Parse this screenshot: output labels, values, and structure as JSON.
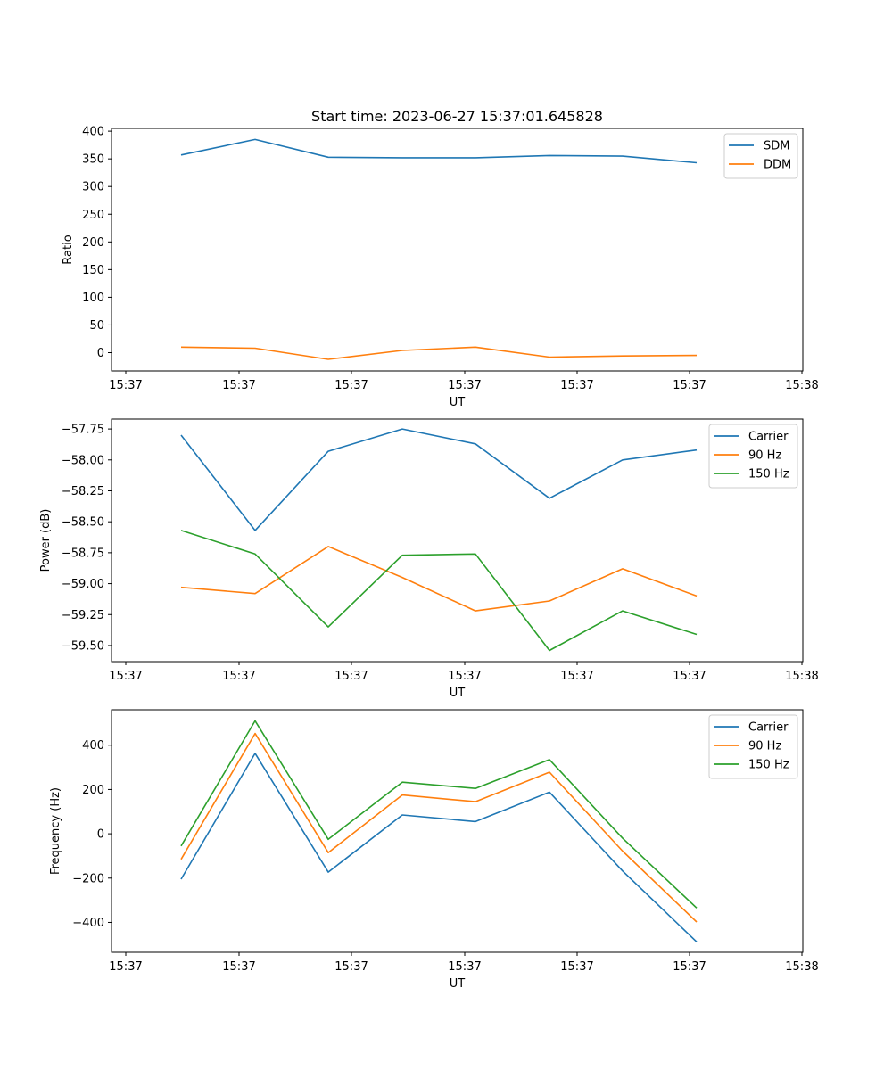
{
  "title": "Start time: 2023-06-27 15:37:01.645828",
  "colors": {
    "blue": "#1f77b4",
    "orange": "#ff7f0e",
    "green": "#2ca02c"
  },
  "chart_data": [
    {
      "type": "line",
      "xlabel": "UT",
      "ylabel": "Ratio",
      "xticks": [
        "15:37",
        "15:37",
        "15:37",
        "15:37",
        "15:37",
        "15:37",
        "15:38"
      ],
      "yticks": [
        "0",
        "50",
        "100",
        "150",
        "200",
        "250",
        "300",
        "350",
        "400"
      ],
      "ylim": [
        -33,
        405
      ],
      "legend": "top-right",
      "series": [
        {
          "name": "SDM",
          "color": "#1f77b4",
          "values": [
            357,
            385,
            353,
            352,
            352,
            356,
            355,
            343
          ]
        },
        {
          "name": "DDM",
          "color": "#ff7f0e",
          "values": [
            10,
            8,
            -12,
            4,
            10,
            -8,
            -6,
            -5
          ]
        }
      ]
    },
    {
      "type": "line",
      "xlabel": "UT",
      "ylabel": "Power (dB)",
      "xticks": [
        "15:37",
        "15:37",
        "15:37",
        "15:37",
        "15:37",
        "15:37",
        "15:38"
      ],
      "yticks": [
        "−57.75",
        "−58.00",
        "−58.25",
        "−58.50",
        "−58.75",
        "−59.00",
        "−59.25",
        "−59.50"
      ],
      "ylim": [
        -59.63,
        -57.67
      ],
      "legend": "top-right",
      "series": [
        {
          "name": "Carrier",
          "color": "#1f77b4",
          "values": [
            -57.8,
            -58.57,
            -57.93,
            -57.75,
            -57.87,
            -58.31,
            -58.0,
            -57.92
          ]
        },
        {
          "name": "90 Hz",
          "color": "#ff7f0e",
          "values": [
            -59.03,
            -59.08,
            -58.7,
            -58.95,
            -59.22,
            -59.14,
            -58.88,
            -59.1
          ]
        },
        {
          "name": "150 Hz",
          "color": "#2ca02c",
          "values": [
            -58.57,
            -58.76,
            -59.35,
            -58.77,
            -58.76,
            -59.54,
            -59.22,
            -59.41
          ]
        }
      ]
    },
    {
      "type": "line",
      "xlabel": "UT",
      "ylabel": "Frequency (Hz)",
      "xticks": [
        "15:37",
        "15:37",
        "15:37",
        "15:37",
        "15:37",
        "15:37",
        "15:38"
      ],
      "yticks": [
        "−400",
        "−200",
        "0",
        "200",
        "400"
      ],
      "ylim": [
        -535,
        560
      ],
      "legend": "top-right",
      "series": [
        {
          "name": "Carrier",
          "color": "#1f77b4",
          "values": [
            -205,
            363,
            -173,
            85,
            55,
            188,
            -168,
            -488
          ]
        },
        {
          "name": "90 Hz",
          "color": "#ff7f0e",
          "values": [
            -115,
            453,
            -85,
            175,
            145,
            278,
            -78,
            -398
          ]
        },
        {
          "name": "150 Hz",
          "color": "#2ca02c",
          "values": [
            -55,
            510,
            -25,
            233,
            205,
            335,
            -20,
            -335
          ]
        }
      ]
    }
  ]
}
